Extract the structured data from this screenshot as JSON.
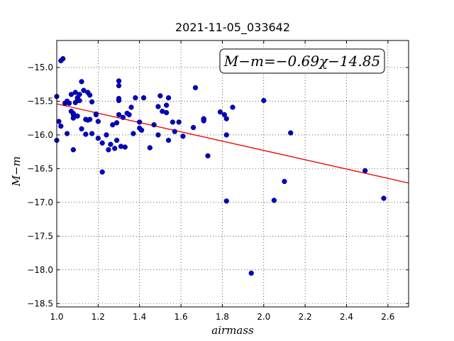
{
  "chart_data": {
    "type": "scatter",
    "title": "2021-11-05_033642",
    "xlabel": "airmass",
    "ylabel": "M−m",
    "xlim": [
      1.0,
      2.7
    ],
    "ylim": [
      -18.55,
      -14.6
    ],
    "y_inverted": true,
    "grid": true,
    "x_ticks": [
      "1.0",
      "1.2",
      "1.4",
      "1.6",
      "1.8",
      "2.0",
      "2.2",
      "2.4",
      "2.6"
    ],
    "x_tick_values": [
      1.0,
      1.2,
      1.4,
      1.6,
      1.8,
      2.0,
      2.2,
      2.4,
      2.6
    ],
    "y_ticks": [
      "−15.0",
      "−15.5",
      "−16.0",
      "−16.5",
      "−17.0",
      "−17.5",
      "−18.0",
      "−18.5"
    ],
    "y_tick_values": [
      -15.0,
      -15.5,
      -16.0,
      -16.5,
      -17.0,
      -17.5,
      -18.0,
      -18.5
    ],
    "annotation": "M−m=−0.69χ−14.85",
    "fit": {
      "slope": -0.69,
      "intercept": -14.85
    },
    "colors": {
      "points": "#0000cc",
      "fit_line": "#ee0000"
    },
    "points": [
      [
        1.0,
        -15.43
      ],
      [
        1.0,
        -16.08
      ],
      [
        1.01,
        -15.8
      ],
      [
        1.02,
        -15.87
      ],
      [
        1.02,
        -14.9
      ],
      [
        1.03,
        -14.87
      ],
      [
        1.04,
        -15.53
      ],
      [
        1.05,
        -15.5
      ],
      [
        1.05,
        -15.98
      ],
      [
        1.06,
        -15.53
      ],
      [
        1.07,
        -15.4
      ],
      [
        1.07,
        -15.65
      ],
      [
        1.08,
        -15.68
      ],
      [
        1.08,
        -15.7
      ],
      [
        1.08,
        -15.75
      ],
      [
        1.08,
        -16.22
      ],
      [
        1.09,
        -15.37
      ],
      [
        1.09,
        -15.52
      ],
      [
        1.1,
        -15.45
      ],
      [
        1.1,
        -15.72
      ],
      [
        1.1,
        -15.49
      ],
      [
        1.11,
        -15.4
      ],
      [
        1.11,
        -15.49
      ],
      [
        1.12,
        -15.21
      ],
      [
        1.12,
        -15.91
      ],
      [
        1.13,
        -15.34
      ],
      [
        1.14,
        -15.77
      ],
      [
        1.14,
        -15.99
      ],
      [
        1.15,
        -15.37
      ],
      [
        1.15,
        -15.78
      ],
      [
        1.16,
        -15.41
      ],
      [
        1.16,
        -15.77
      ],
      [
        1.17,
        -15.98
      ],
      [
        1.17,
        -15.51
      ],
      [
        1.19,
        -15.7
      ],
      [
        1.19,
        -15.69
      ],
      [
        1.2,
        -16.05
      ],
      [
        1.2,
        -15.8
      ],
      [
        1.22,
        -16.55
      ],
      [
        1.22,
        -16.12
      ],
      [
        1.24,
        -16.0
      ],
      [
        1.25,
        -16.22
      ],
      [
        1.26,
        -16.14
      ],
      [
        1.27,
        -15.85
      ],
      [
        1.28,
        -16.2
      ],
      [
        1.29,
        -15.82
      ],
      [
        1.29,
        -16.08
      ],
      [
        1.3,
        -15.49
      ],
      [
        1.3,
        -15.46
      ],
      [
        1.3,
        -15.2
      ],
      [
        1.3,
        -15.27
      ],
      [
        1.3,
        -15.7
      ],
      [
        1.31,
        -16.17
      ],
      [
        1.32,
        -15.74
      ],
      [
        1.33,
        -16.18
      ],
      [
        1.34,
        -15.68
      ],
      [
        1.35,
        -15.7
      ],
      [
        1.36,
        -15.59
      ],
      [
        1.37,
        -15.98
      ],
      [
        1.38,
        -15.45
      ],
      [
        1.4,
        -15.81
      ],
      [
        1.4,
        -15.9
      ],
      [
        1.41,
        -15.93
      ],
      [
        1.42,
        -15.45
      ],
      [
        1.45,
        -16.19
      ],
      [
        1.47,
        -15.85
      ],
      [
        1.49,
        -15.58
      ],
      [
        1.49,
        -16.0
      ],
      [
        1.5,
        -15.42
      ],
      [
        1.51,
        -15.65
      ],
      [
        1.53,
        -15.67
      ],
      [
        1.53,
        -15.56
      ],
      [
        1.54,
        -16.08
      ],
      [
        1.54,
        -15.45
      ],
      [
        1.56,
        -15.81
      ],
      [
        1.57,
        -15.95
      ],
      [
        1.59,
        -15.81
      ],
      [
        1.61,
        -16.02
      ],
      [
        1.66,
        -15.89
      ],
      [
        1.67,
        -15.3
      ],
      [
        1.71,
        -15.77
      ],
      [
        1.71,
        -15.76
      ],
      [
        1.71,
        -15.79
      ],
      [
        1.73,
        -16.31
      ],
      [
        1.79,
        -15.66
      ],
      [
        1.81,
        -15.7
      ],
      [
        1.82,
        -15.76
      ],
      [
        1.82,
        -16.0
      ],
      [
        1.82,
        -16.98
      ],
      [
        1.85,
        -15.59
      ],
      [
        1.94,
        -18.05
      ],
      [
        2.0,
        -15.49
      ],
      [
        2.05,
        -16.97
      ],
      [
        2.1,
        -16.69
      ],
      [
        2.13,
        -15.97
      ],
      [
        2.49,
        -16.53
      ],
      [
        2.58,
        -16.94
      ]
    ]
  }
}
